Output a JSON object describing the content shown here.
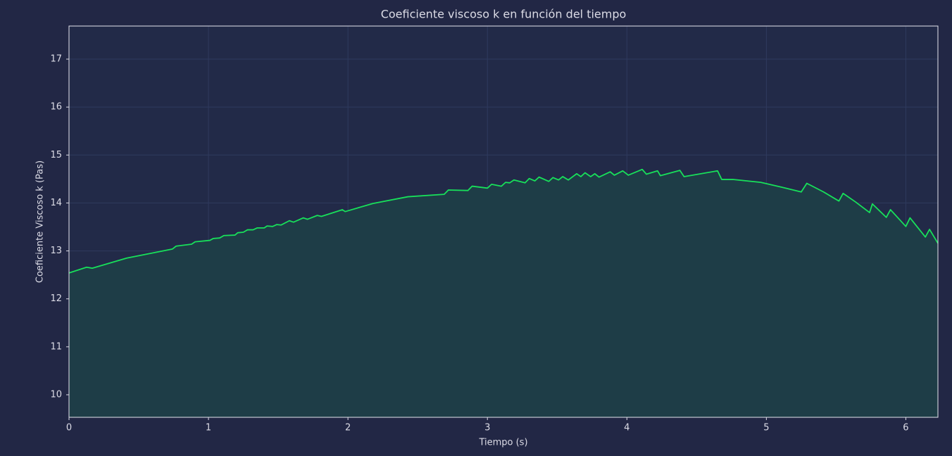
{
  "chart_data": {
    "type": "line",
    "title": "Coeficiente viscoso k en función del tiempo",
    "x_label": "Tiempo (s)",
    "y_label": "Coeficiente Viscoso k (Pas)",
    "x": [
      0,
      0.126,
      0.167,
      0.414,
      0.742,
      0.768,
      0.879,
      0.904,
      1.01,
      1.035,
      1.08,
      1.11,
      1.19,
      1.21,
      1.25,
      1.28,
      1.32,
      1.35,
      1.4,
      1.42,
      1.46,
      1.49,
      1.52,
      1.58,
      1.61,
      1.68,
      1.71,
      1.78,
      1.81,
      1.96,
      1.98,
      2.18,
      2.43,
      2.69,
      2.72,
      2.86,
      2.89,
      3.0,
      3.03,
      3.1,
      3.13,
      3.16,
      3.19,
      3.27,
      3.3,
      3.34,
      3.37,
      3.44,
      3.47,
      3.51,
      3.54,
      3.58,
      3.64,
      3.67,
      3.7,
      3.74,
      3.77,
      3.8,
      3.88,
      3.91,
      3.97,
      4.01,
      4.11,
      4.14,
      4.22,
      4.24,
      4.38,
      4.41,
      4.65,
      4.68,
      4.76,
      4.96,
      5.11,
      5.25,
      5.29,
      5.41,
      5.52,
      5.55,
      5.64,
      5.74,
      5.76,
      5.86,
      5.89,
      6.0,
      6.03,
      6.14,
      6.17,
      6.23
    ],
    "series": [
      {
        "color": "#18e05a",
        "values": [
          12.54,
          12.66,
          12.64,
          12.85,
          13.04,
          13.1,
          13.14,
          13.19,
          13.22,
          13.26,
          13.27,
          13.32,
          13.33,
          13.38,
          13.39,
          13.44,
          13.44,
          13.48,
          13.48,
          13.52,
          13.51,
          13.55,
          13.54,
          13.63,
          13.6,
          13.69,
          13.66,
          13.74,
          13.72,
          13.86,
          13.82,
          13.99,
          14.13,
          14.18,
          14.27,
          14.26,
          14.35,
          14.31,
          14.39,
          14.35,
          14.43,
          14.42,
          14.48,
          14.42,
          14.51,
          14.46,
          14.54,
          14.45,
          14.53,
          14.48,
          14.55,
          14.48,
          14.61,
          14.55,
          14.63,
          14.55,
          14.61,
          14.54,
          14.65,
          14.58,
          14.67,
          14.58,
          14.7,
          14.6,
          14.67,
          14.57,
          14.68,
          14.55,
          14.67,
          14.49,
          14.49,
          14.43,
          14.33,
          14.23,
          14.41,
          14.23,
          14.04,
          14.2,
          14.02,
          13.8,
          13.98,
          13.7,
          13.86,
          13.51,
          13.69,
          13.29,
          13.45,
          13.16
        ]
      }
    ],
    "area": true,
    "area_color": "#1e3d47",
    "xlim": [
      0,
      6.23
    ],
    "ylim": [
      9.53,
      17.69
    ],
    "xticks": [
      0,
      1,
      2,
      3,
      4,
      5,
      6
    ],
    "yticks": [
      10,
      11,
      12,
      13,
      14,
      15,
      16,
      17
    ],
    "grid": true
  }
}
